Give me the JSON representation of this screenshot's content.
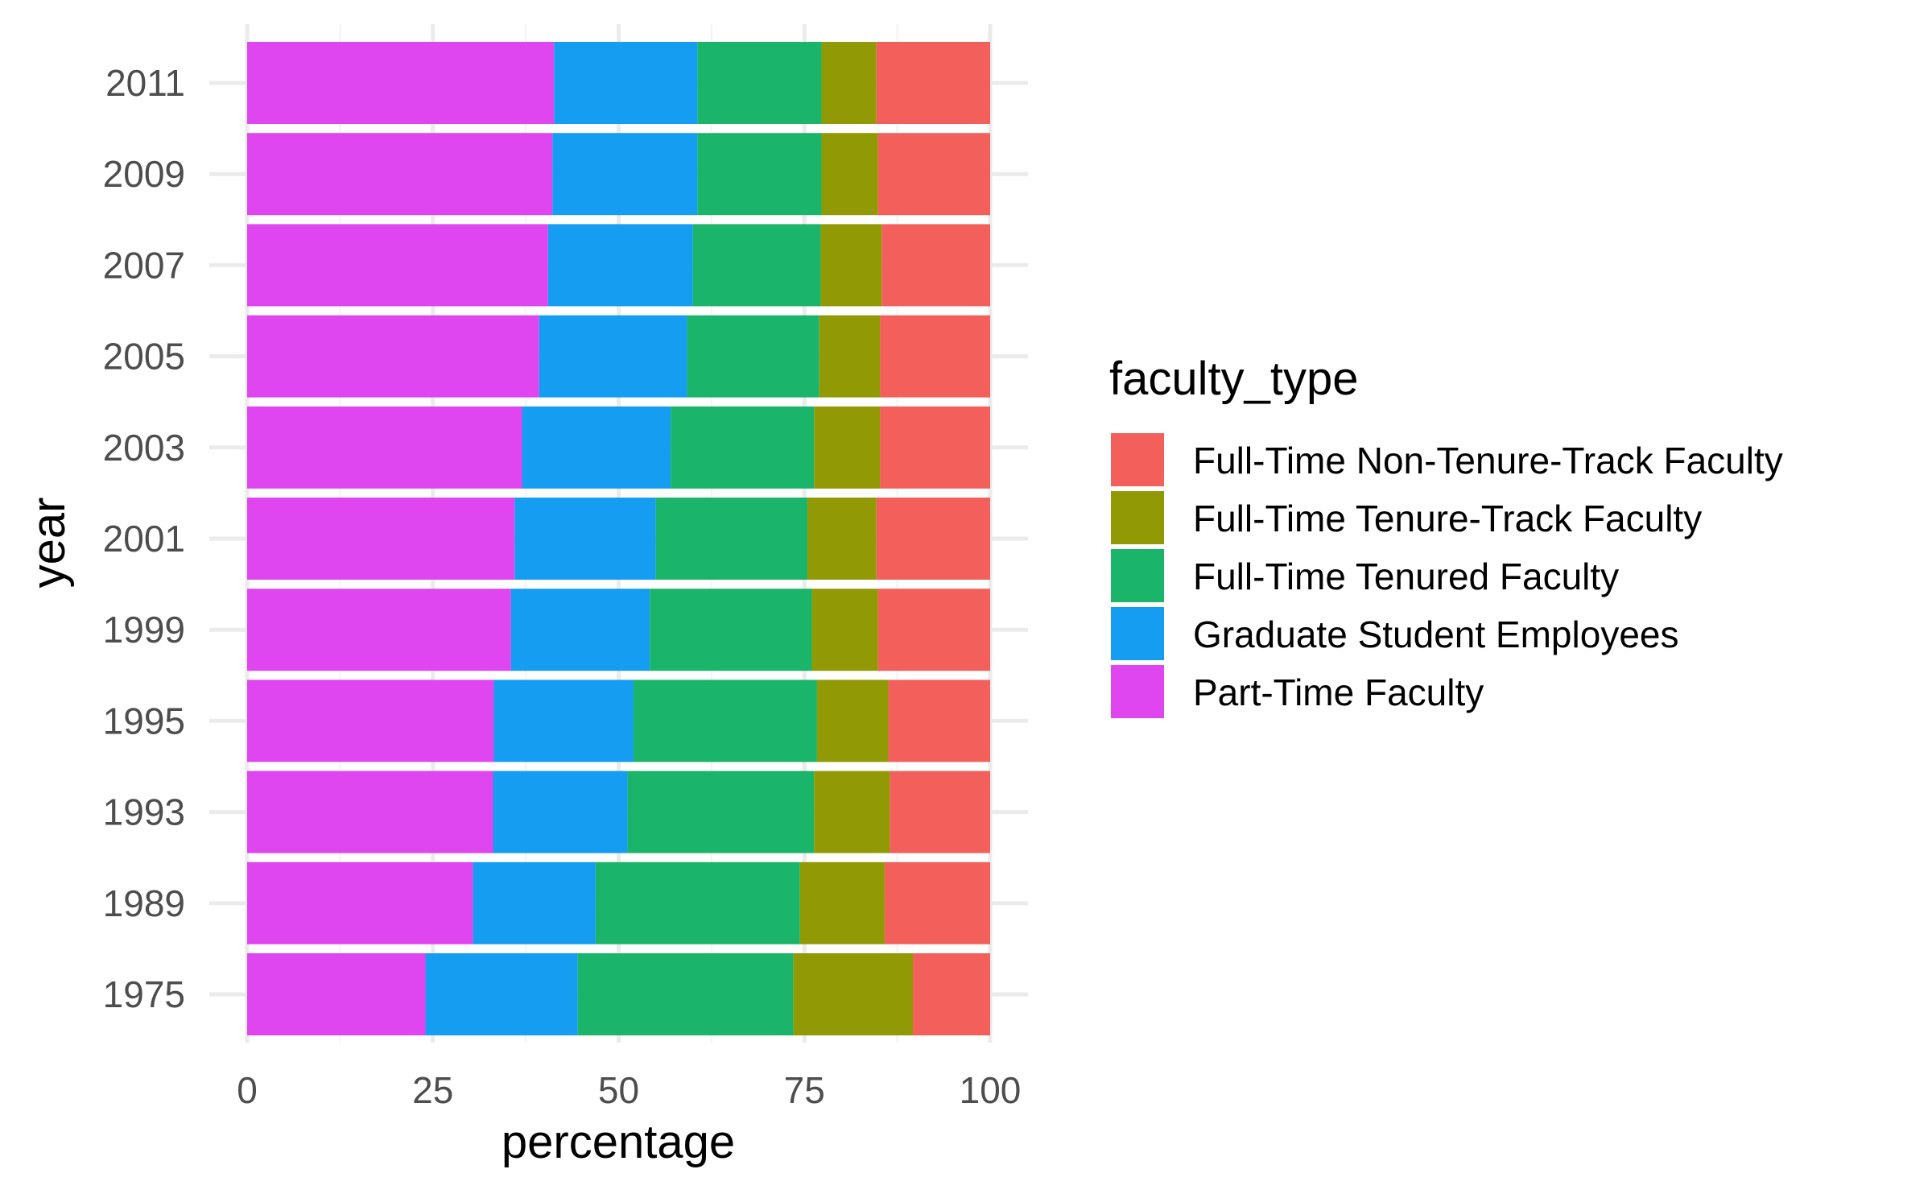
{
  "chart_data": {
    "type": "bar",
    "orientation": "horizontal",
    "stacked": true,
    "title": "",
    "xlabel": "percentage",
    "ylabel": "year",
    "xlim": [
      0,
      100
    ],
    "x_ticks": [
      "0",
      "25",
      "50",
      "75",
      "100"
    ],
    "categories": [
      "2011",
      "2009",
      "2007",
      "2005",
      "2003",
      "2001",
      "1999",
      "1995",
      "1993",
      "1989",
      "1975"
    ],
    "grid": true,
    "legend": {
      "title": "faculty_type",
      "position": "right",
      "entries": [
        "Full-Time Non-Tenure-Track Faculty",
        "Full-Time Tenure-Track Faculty",
        "Full-Time Tenured Faculty",
        "Graduate Student Employees",
        "Part-Time Faculty"
      ]
    },
    "stack_order_from_left": [
      "Part-Time Faculty",
      "Graduate Student Employees",
      "Full-Time Tenured Faculty",
      "Full-Time Tenure-Track Faculty",
      "Full-Time Non-Tenure-Track Faculty"
    ],
    "series": [
      {
        "name": "Part-Time Faculty",
        "color": "#E046EF",
        "values": [
          41.3,
          41.1,
          40.5,
          39.3,
          37.0,
          36.0,
          35.5,
          33.2,
          33.1,
          30.4,
          24.0
        ]
      },
      {
        "name": "Graduate Student Employees",
        "color": "#159DF1",
        "values": [
          19.3,
          19.5,
          19.5,
          19.9,
          20.0,
          19.0,
          18.7,
          18.8,
          18.1,
          16.5,
          20.5
        ]
      },
      {
        "name": "Full-Time Tenured Faculty",
        "color": "#1AB56A",
        "values": [
          16.7,
          16.7,
          17.2,
          17.8,
          19.3,
          20.4,
          21.8,
          24.7,
          25.1,
          27.5,
          29.0
        ]
      },
      {
        "name": "Full-Time Tenure-Track Faculty",
        "color": "#919A04",
        "values": [
          7.4,
          7.6,
          8.2,
          8.2,
          8.9,
          9.3,
          8.9,
          9.6,
          10.2,
          11.4,
          16.1
        ]
      },
      {
        "name": "Full-Time Non-Tenure-Track Faculty",
        "color": "#F3605B",
        "values": [
          15.3,
          15.1,
          14.6,
          14.8,
          14.8,
          15.3,
          15.1,
          13.7,
          13.5,
          14.2,
          10.4
        ]
      }
    ]
  }
}
